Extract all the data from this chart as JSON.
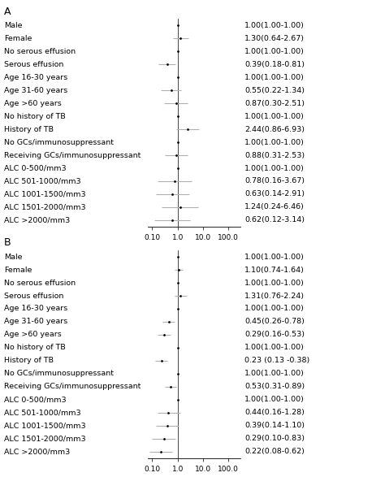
{
  "panel_A": {
    "label": "A",
    "rows": [
      {
        "name": "Male",
        "or": 1.0,
        "lo": 1.0,
        "hi": 1.0,
        "text": "1.00(1.00-1.00)"
      },
      {
        "name": "Female",
        "or": 1.3,
        "lo": 0.64,
        "hi": 2.67,
        "text": "1.30(0.64-2.67)"
      },
      {
        "name": "No serous effusion",
        "or": 1.0,
        "lo": 1.0,
        "hi": 1.0,
        "text": "1.00(1.00-1.00)"
      },
      {
        "name": "Serous effusion",
        "or": 0.39,
        "lo": 0.18,
        "hi": 0.81,
        "text": "0.39(0.18-0.81)"
      },
      {
        "name": "Age 16-30 years",
        "or": 1.0,
        "lo": 1.0,
        "hi": 1.0,
        "text": "1.00(1.00-1.00)"
      },
      {
        "name": "Age 31-60 years",
        "or": 0.55,
        "lo": 0.22,
        "hi": 1.34,
        "text": "0.55(0.22-1.34)"
      },
      {
        "name": "Age >60 years",
        "or": 0.87,
        "lo": 0.3,
        "hi": 2.51,
        "text": "0.87(0.30-2.51)"
      },
      {
        "name": "No history of TB",
        "or": 1.0,
        "lo": 1.0,
        "hi": 1.0,
        "text": "1.00(1.00-1.00)"
      },
      {
        "name": "History of TB",
        "or": 2.44,
        "lo": 0.86,
        "hi": 6.93,
        "text": "2.44(0.86-6.93)"
      },
      {
        "name": "No GCs/immunosuppressant",
        "or": 1.0,
        "lo": 1.0,
        "hi": 1.0,
        "text": "1.00(1.00-1.00)"
      },
      {
        "name": "Receiving GCs/immunosuppressant",
        "or": 0.88,
        "lo": 0.31,
        "hi": 2.53,
        "text": "0.88(0.31-2.53)"
      },
      {
        "name": "ALC 0-500/mm3",
        "or": 1.0,
        "lo": 1.0,
        "hi": 1.0,
        "text": "1.00(1.00-1.00)"
      },
      {
        "name": "ALC 501-1000/mm3",
        "or": 0.78,
        "lo": 0.16,
        "hi": 3.67,
        "text": "0.78(0.16-3.67)"
      },
      {
        "name": "ALC 1001-1500/mm3",
        "or": 0.63,
        "lo": 0.14,
        "hi": 2.91,
        "text": "0.63(0.14-2.91)"
      },
      {
        "name": "ALC 1501-2000/mm3",
        "or": 1.24,
        "lo": 0.24,
        "hi": 6.46,
        "text": "1.24(0.24-6.46)"
      },
      {
        "name": "ALC >2000/mm3",
        "or": 0.62,
        "lo": 0.12,
        "hi": 3.14,
        "text": "0.62(0.12-3.14)"
      }
    ],
    "xlim": [
      0.07,
      300.0
    ],
    "xticks": [
      0.1,
      1.0,
      10.0,
      100.0
    ],
    "xticklabels": [
      "0.10",
      "1.0",
      "10.0",
      "100.0"
    ]
  },
  "panel_B": {
    "label": "B",
    "rows": [
      {
        "name": "Male",
        "or": 1.0,
        "lo": 1.0,
        "hi": 1.0,
        "text": "1.00(1.00-1.00)"
      },
      {
        "name": "Female",
        "or": 1.1,
        "lo": 0.74,
        "hi": 1.64,
        "text": "1.10(0.74-1.64)"
      },
      {
        "name": "No serous effusion",
        "or": 1.0,
        "lo": 1.0,
        "hi": 1.0,
        "text": "1.00(1.00-1.00)"
      },
      {
        "name": "Serous effusion",
        "or": 1.31,
        "lo": 0.76,
        "hi": 2.24,
        "text": "1.31(0.76-2.24)"
      },
      {
        "name": "Age 16-30 years",
        "or": 1.0,
        "lo": 1.0,
        "hi": 1.0,
        "text": "1.00(1.00-1.00)"
      },
      {
        "name": "Age 31-60 years",
        "or": 0.45,
        "lo": 0.26,
        "hi": 0.78,
        "text": "0.45(0.26-0.78)"
      },
      {
        "name": "Age >60 years",
        "or": 0.29,
        "lo": 0.16,
        "hi": 0.53,
        "text": "0.29(0.16-0.53)"
      },
      {
        "name": "No history of TB",
        "or": 1.0,
        "lo": 1.0,
        "hi": 1.0,
        "text": "1.00(1.00-1.00)"
      },
      {
        "name": "History of TB",
        "or": 0.23,
        "lo": 0.13,
        "hi": 0.38,
        "text": "0.23 (0.13 -0.38)"
      },
      {
        "name": "No GCs/immunosuppressant",
        "or": 1.0,
        "lo": 1.0,
        "hi": 1.0,
        "text": "1.00(1.00-1.00)"
      },
      {
        "name": "Receiving GCs/immunosuppressant",
        "or": 0.53,
        "lo": 0.31,
        "hi": 0.89,
        "text": "0.53(0.31-0.89)"
      },
      {
        "name": "ALC 0-500/mm3",
        "or": 1.0,
        "lo": 1.0,
        "hi": 1.0,
        "text": "1.00(1.00-1.00)"
      },
      {
        "name": "ALC 501-1000/mm3",
        "or": 0.44,
        "lo": 0.16,
        "hi": 1.28,
        "text": "0.44(0.16-1.28)"
      },
      {
        "name": "ALC 1001-1500/mm3",
        "or": 0.39,
        "lo": 0.14,
        "hi": 1.1,
        "text": "0.39(0.14-1.10)"
      },
      {
        "name": "ALC 1501-2000/mm3",
        "or": 0.29,
        "lo": 0.1,
        "hi": 0.83,
        "text": "0.29(0.10-0.83)"
      },
      {
        "name": "ALC >2000/mm3",
        "or": 0.22,
        "lo": 0.08,
        "hi": 0.62,
        "text": "0.22(0.08-0.62)"
      }
    ],
    "xlim": [
      0.07,
      300.0
    ],
    "xticks": [
      0.1,
      1.0,
      10.0,
      100.0
    ],
    "xticklabels": [
      "0.10",
      "1.0",
      "10.0",
      "100.0"
    ]
  },
  "bg_color": "#ffffff",
  "text_color": "#000000",
  "point_color": "#000000",
  "ci_color": "#b0b0b0",
  "ref_line_color": "#000000",
  "fontsize_row": 6.8,
  "fontsize_or": 6.8,
  "fontsize_panel": 9,
  "fontsize_tick": 6.5
}
